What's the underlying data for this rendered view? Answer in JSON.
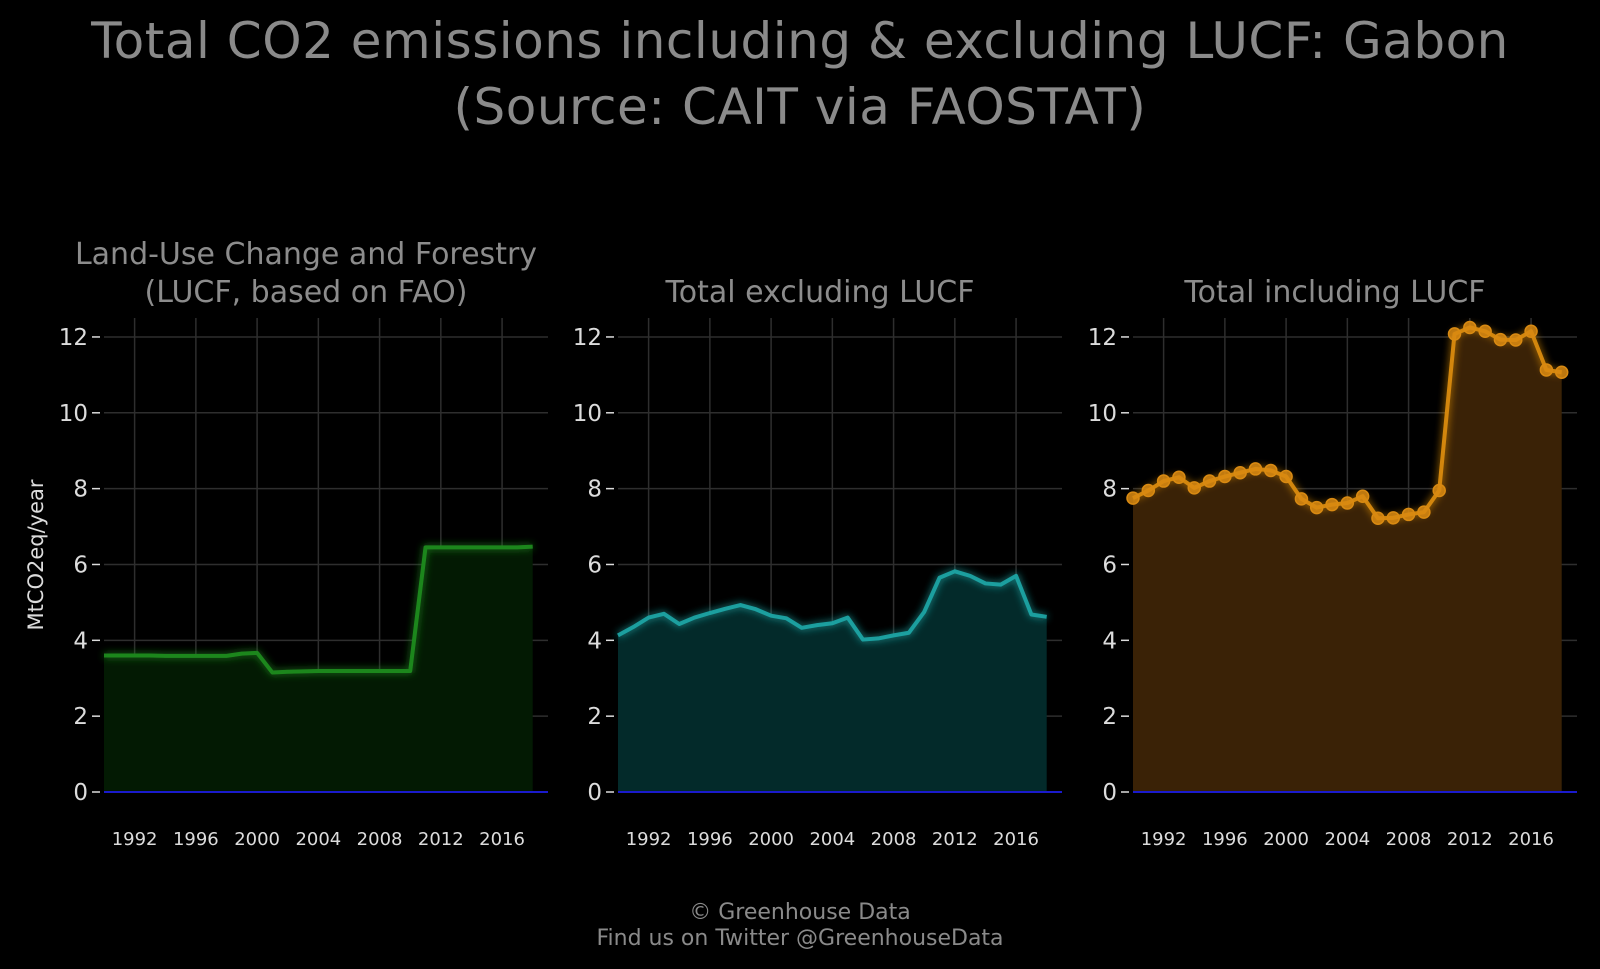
{
  "title_line1": "Total CO2 emissions including & excluding LUCF: Gabon",
  "title_line2": "(Source: CAIT via FAOSTAT)",
  "footer_line1": "© Greenhouse Data",
  "footer_line2": "Find us on Twitter @GreenhouseData",
  "chart_data": [
    {
      "type": "area",
      "title_lines": [
        "Land-Use Change and Forestry",
        "(LUCF, based on FAO)"
      ],
      "ylabel": "MtCO2eq/year",
      "color": "#1f8a1f",
      "fill": "#031a03",
      "markers": false,
      "ylim": [
        0,
        12.5
      ],
      "yticks": [
        0,
        2,
        4,
        6,
        8,
        10,
        12
      ],
      "xlim": [
        1990,
        2019
      ],
      "xticks": [
        1992,
        1996,
        2000,
        2004,
        2008,
        2012,
        2016
      ],
      "x": [
        1990,
        1991,
        1992,
        1993,
        1994,
        1995,
        1996,
        1997,
        1998,
        1999,
        2000,
        2001,
        2002,
        2003,
        2004,
        2005,
        2006,
        2007,
        2008,
        2009,
        2010,
        2011,
        2012,
        2013,
        2014,
        2015,
        2016,
        2017,
        2018
      ],
      "y": [
        3.6,
        3.6,
        3.6,
        3.6,
        3.59,
        3.59,
        3.59,
        3.59,
        3.59,
        3.65,
        3.67,
        3.15,
        3.17,
        3.18,
        3.19,
        3.19,
        3.19,
        3.19,
        3.19,
        3.19,
        3.19,
        6.45,
        6.45,
        6.45,
        6.45,
        6.45,
        6.45,
        6.45,
        6.47
      ]
    },
    {
      "type": "area",
      "title_lines": [
        "Total excluding LUCF"
      ],
      "ylabel": "",
      "color": "#1aa3a3",
      "fill": "#032a2a",
      "markers": false,
      "ylim": [
        0,
        12.5
      ],
      "yticks": [
        0,
        2,
        4,
        6,
        8,
        10,
        12
      ],
      "xlim": [
        1990,
        2019
      ],
      "xticks": [
        1992,
        1996,
        2000,
        2004,
        2008,
        2012,
        2016
      ],
      "x": [
        1990,
        1991,
        1992,
        1993,
        1994,
        1995,
        1996,
        1997,
        1998,
        1999,
        2000,
        2001,
        2002,
        2003,
        2004,
        2005,
        2006,
        2007,
        2008,
        2009,
        2010,
        2011,
        2012,
        2013,
        2014,
        2015,
        2016,
        2017,
        2018
      ],
      "y": [
        4.13,
        4.35,
        4.6,
        4.7,
        4.43,
        4.6,
        4.72,
        4.83,
        4.93,
        4.82,
        4.65,
        4.58,
        4.33,
        4.4,
        4.45,
        4.6,
        4.02,
        4.05,
        4.13,
        4.2,
        4.75,
        5.65,
        5.82,
        5.7,
        5.5,
        5.47,
        5.7,
        4.68,
        4.62
      ]
    },
    {
      "type": "area",
      "title_lines": [
        "Total including LUCF"
      ],
      "ylabel": "",
      "color": "#d98a12",
      "fill": "#3a2206",
      "markers": true,
      "ylim": [
        0,
        12.5
      ],
      "yticks": [
        0,
        2,
        4,
        6,
        8,
        10,
        12
      ],
      "xlim": [
        1990,
        2019
      ],
      "xticks": [
        1992,
        1996,
        2000,
        2004,
        2008,
        2012,
        2016
      ],
      "x": [
        1990,
        1991,
        1992,
        1993,
        1994,
        1995,
        1996,
        1997,
        1998,
        1999,
        2000,
        2001,
        2002,
        2003,
        2004,
        2005,
        2006,
        2007,
        2008,
        2009,
        2010,
        2011,
        2012,
        2013,
        2014,
        2015,
        2016,
        2017,
        2018
      ],
      "y": [
        7.75,
        7.95,
        8.2,
        8.3,
        8.02,
        8.2,
        8.32,
        8.42,
        8.52,
        8.48,
        8.32,
        7.73,
        7.5,
        7.58,
        7.62,
        7.8,
        7.22,
        7.23,
        7.32,
        7.38,
        7.95,
        12.08,
        12.25,
        12.15,
        11.93,
        11.92,
        12.15,
        11.13,
        11.07
      ]
    }
  ]
}
